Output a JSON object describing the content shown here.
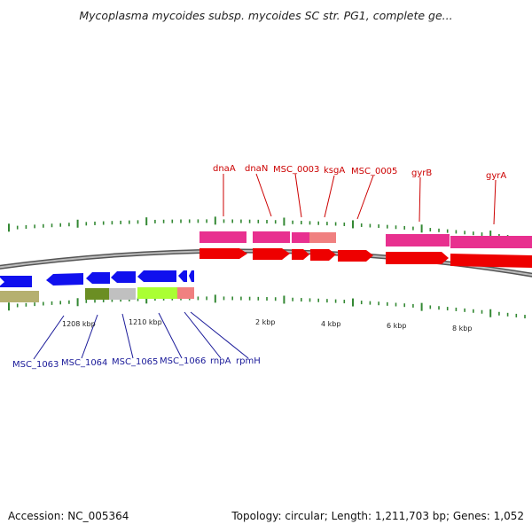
{
  "title": "Mycoplasma mycoides subsp. mycoides SC str. PG1, complete ge...",
  "footer": {
    "accession": "Accession: NC_005364",
    "summary": "Topology: circular; Length: 1,211,703 bp; Genes: 1,052"
  },
  "colors": {
    "forward_cds": "#ee0000",
    "reverse_cds": "#1010ee",
    "forward_gene_label": "#cc0000",
    "reverse_gene_label": "#1a1a99",
    "backbone": "#888888",
    "tick": "#338833"
  },
  "scale_labels": [
    "1208 kbp",
    "1210 kbp",
    "2 kbp",
    "4 kbp",
    "6 kbp",
    "8 kbp"
  ],
  "top_genes": [
    "dnaA",
    "dnaN",
    "MSC_0003",
    "ksgA",
    "MSC_0005",
    "gyrB",
    "gyrA"
  ],
  "bottom_genes": [
    "MSC_1063",
    "MSC_1064",
    "MSC_1065",
    "MSC_1066",
    "rnpA",
    "rpmH"
  ]
}
